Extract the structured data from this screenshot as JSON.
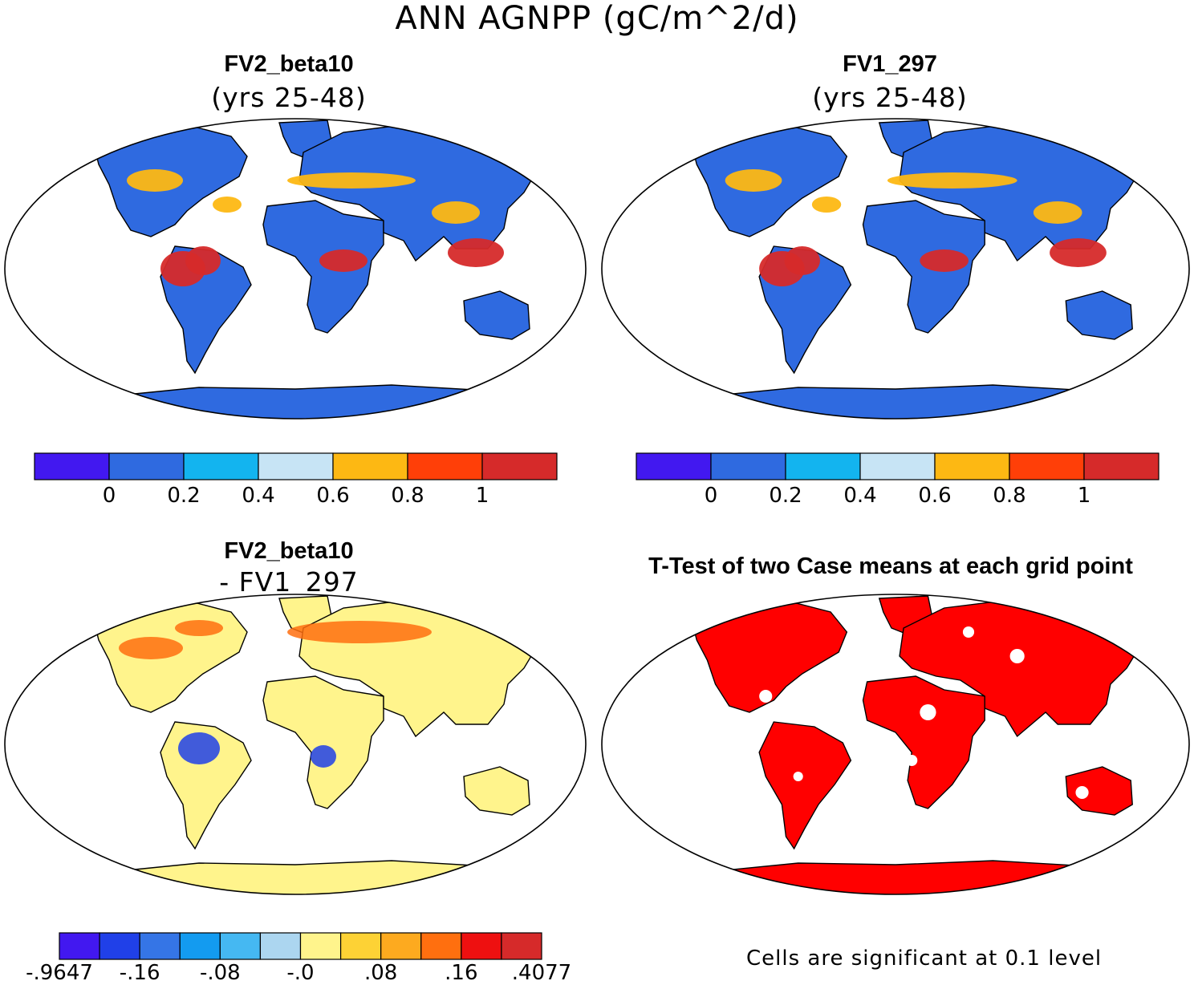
{
  "figure": {
    "title": "ANN AGNPP (gC/m^2/d)"
  },
  "panels": {
    "case1": {
      "title": "FV2_beta10",
      "subtitle": "(yrs 25-48)"
    },
    "case2": {
      "title": "FV1_297",
      "subtitle": "(yrs 25-48)"
    },
    "diff": {
      "title": "FV2_beta10",
      "subtitle": "- FV1_297"
    },
    "ttest": {
      "title": "T-Test of two Case means at each grid point",
      "note": "Cells are significant at 0.1 level"
    }
  },
  "legends": {
    "main": {
      "colors": [
        "#4218f0",
        "#2f6ae0",
        "#13b4ef",
        "#c7e4f5",
        "#fdb813",
        "#ff3f08",
        "#d62a2a"
      ],
      "labels": [
        "0",
        "0.2",
        "0.4",
        "0.6",
        "0.8",
        "1"
      ]
    },
    "diff": {
      "colors": [
        "#4218f0",
        "#2040e8",
        "#3575e6",
        "#139bf0",
        "#45b8f2",
        "#acd6f0",
        "#fff48c",
        "#fdd235",
        "#fdaa1f",
        "#ff6f0f",
        "#ee1010",
        "#d62a2a"
      ],
      "labels": [
        "-.9647",
        "-.16",
        "-.08",
        "-.0",
        ".08",
        ".16",
        ".4077"
      ]
    }
  },
  "map_colors": {
    "ocean": "#ffffff",
    "land_low": "#2f6ae0",
    "land_mid": "#fdb813",
    "land_high": "#d62a2a",
    "diff_base": "#fff48c",
    "diff_neg": "#2040e8",
    "diff_pos": "#ff6f0f",
    "sig": "#ff0000"
  }
}
